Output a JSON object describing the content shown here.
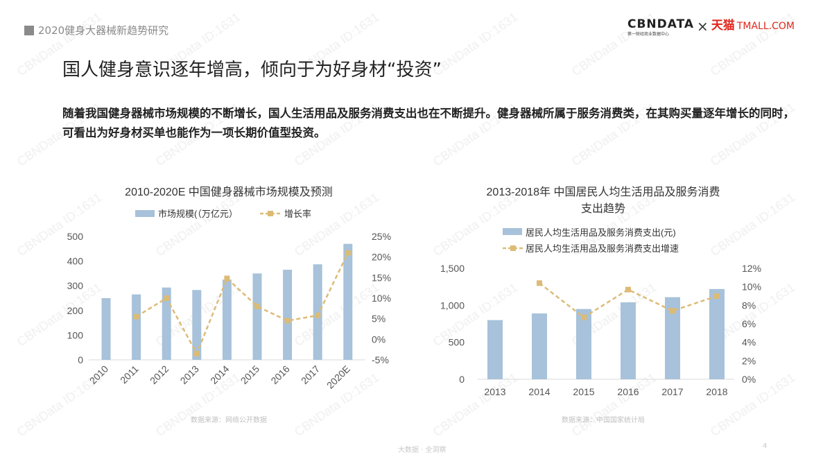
{
  "header": {
    "report_title": "2020健身大器械新趋势研究"
  },
  "logo": {
    "cbn": "CBNDATA",
    "cbn_sub": "第一财经商业数据中心",
    "times": "×",
    "tmall": "天猫",
    "tmall_en": "TMALL.COM"
  },
  "title": "国人健身意识逐年增高，倾向于为好身材“投资”",
  "description": "随着我国健身器械市场规模的不断增长，国人生活用品及服务消费支出也在不断提升。健身器械所属于服务消费类，在其购买量逐年增长的同时，可看出为好身材买单也能作为一项长期价值型投资。",
  "watermark": "CBNData ID:1631",
  "colors": {
    "bar": "#a7c2da",
    "line": "#dcbb76"
  },
  "chart_data": [
    {
      "type": "bar+line",
      "title": "2010-2020E 中国健身器械市场规模及预测",
      "categories": [
        "2010",
        "2011",
        "2012",
        "2013",
        "2014",
        "2015",
        "2016",
        "2017",
        "2020E"
      ],
      "series": [
        {
          "name": "市场规模(（万亿元）",
          "type": "bar",
          "axis": "left",
          "values": [
            250,
            265,
            293,
            283,
            325,
            350,
            365,
            387,
            470
          ]
        },
        {
          "name": "增长率",
          "type": "line",
          "axis": "right",
          "values": [
            null,
            5.5,
            10.0,
            -3.5,
            14.8,
            8.0,
            4.5,
            5.8,
            21.0
          ]
        }
      ],
      "y_left": {
        "range": [
          0,
          500
        ],
        "ticks": [
          "0",
          "100",
          "200",
          "300",
          "400",
          "500"
        ]
      },
      "y_right": {
        "range": [
          -5,
          25
        ],
        "ticks": [
          "-5%",
          "0%",
          "5%",
          "10%",
          "15%",
          "20%",
          "25%"
        ]
      },
      "legend": "top",
      "grid": false,
      "source": "数据来源：网络公开数据"
    },
    {
      "type": "bar+line",
      "title": "2013-2018年 中国居民人均生活用品及服务消费支出趋势",
      "categories": [
        "2013",
        "2014",
        "2015",
        "2016",
        "2017",
        "2018"
      ],
      "series": [
        {
          "name": "居民人均生活用品及服务消费支出(元)",
          "type": "bar",
          "axis": "left",
          "values": [
            800,
            890,
            950,
            1040,
            1110,
            1220
          ]
        },
        {
          "name": "居民人均生活用品及服务消费支出增速",
          "type": "line",
          "axis": "right",
          "values": [
            null,
            10.4,
            6.7,
            9.7,
            7.4,
            9.0
          ]
        }
      ],
      "y_left": {
        "range": [
          0,
          1500
        ],
        "ticks": [
          "0",
          "500",
          "1,000",
          "1,500"
        ]
      },
      "y_right": {
        "range": [
          0,
          12
        ],
        "ticks": [
          "0%",
          "2%",
          "4%",
          "6%",
          "8%",
          "10%",
          "12%"
        ]
      },
      "legend": "top",
      "grid": false,
      "source": "数据来源：中国国家统计局"
    }
  ],
  "footer": {
    "tagline": "大数据 · 全洞察",
    "page": "4"
  }
}
